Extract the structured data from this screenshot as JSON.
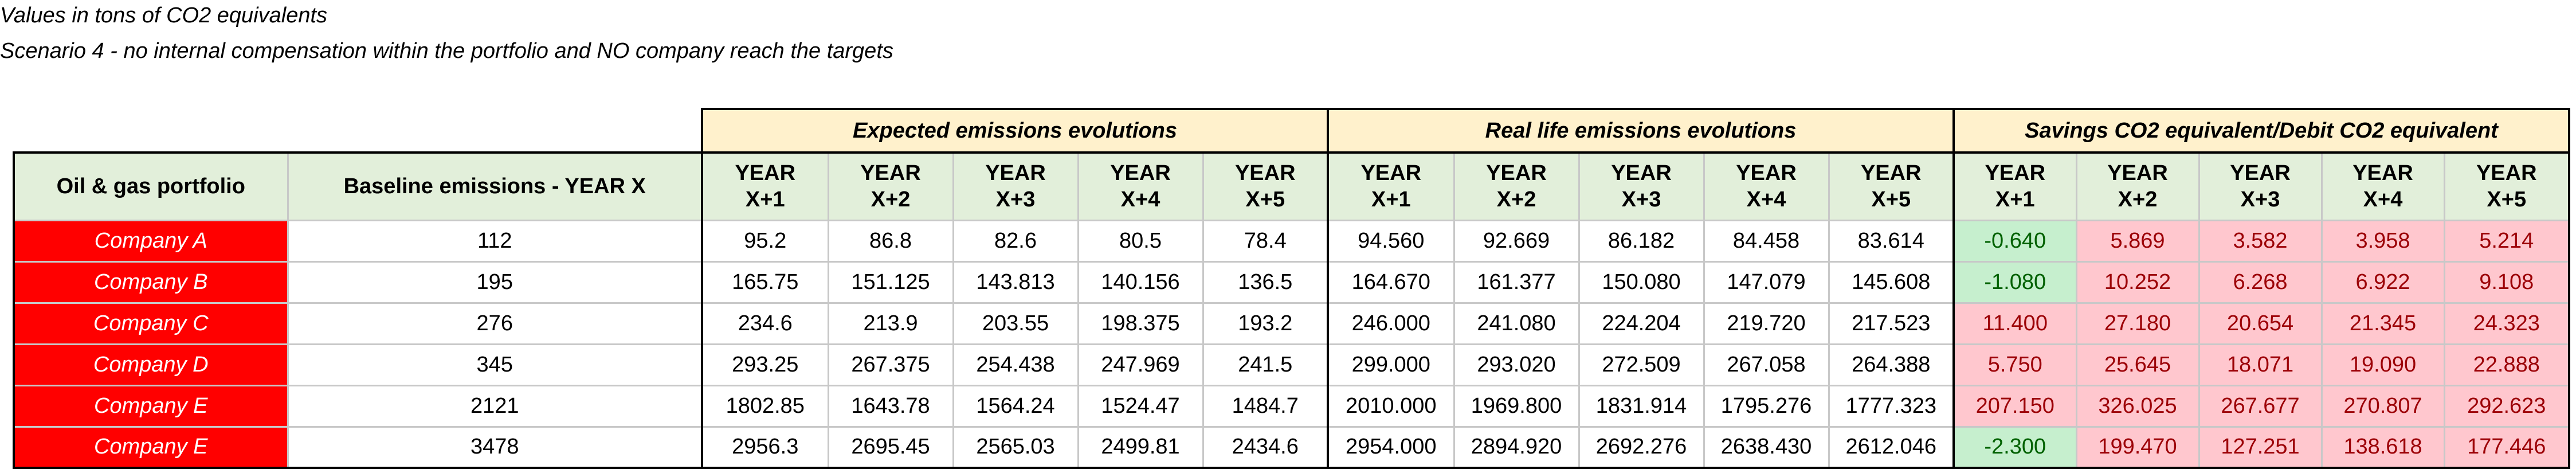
{
  "notes": {
    "line1": "Values in tons of CO2 equivalents",
    "line2": "Scenario 4  - no internal compensation within the portfolio and NO company reach the targets"
  },
  "groups": {
    "expected": "Expected emissions evolutions",
    "real": "Real life emissions evolutions",
    "savings": "Savings CO2 equivalent/Debit CO2 equivalent"
  },
  "headers": {
    "portfolio": "Oil & gas portfolio",
    "baseline": "Baseline emissions - YEAR X",
    "year_top": "YEAR",
    "years": [
      "X+1",
      "X+2",
      "X+3",
      "X+4",
      "X+5"
    ]
  },
  "colors": {
    "company_fill": "#ff0000",
    "header_fill": "#e2efda",
    "group_fill": "#fff1cc",
    "debit_fill": "#ffc7ce",
    "saving_fill": "#c6efce"
  },
  "rows": [
    {
      "company": "Company A",
      "baseline": "112",
      "expected": [
        "95.2",
        "86.8",
        "82.6",
        "80.5",
        "78.4"
      ],
      "real": [
        "94.560",
        "92.669",
        "86.182",
        "84.458",
        "83.614"
      ],
      "savings": [
        "-0.640",
        "5.869",
        "3.582",
        "3.958",
        "5.214"
      ]
    },
    {
      "company": "Company B",
      "baseline": "195",
      "expected": [
        "165.75",
        "151.125",
        "143.813",
        "140.156",
        "136.5"
      ],
      "real": [
        "164.670",
        "161.377",
        "150.080",
        "147.079",
        "145.608"
      ],
      "savings": [
        "-1.080",
        "10.252",
        "6.268",
        "6.922",
        "9.108"
      ]
    },
    {
      "company": "Company C",
      "baseline": "276",
      "expected": [
        "234.6",
        "213.9",
        "203.55",
        "198.375",
        "193.2"
      ],
      "real": [
        "246.000",
        "241.080",
        "224.204",
        "219.720",
        "217.523"
      ],
      "savings": [
        "11.400",
        "27.180",
        "20.654",
        "21.345",
        "24.323"
      ]
    },
    {
      "company": "Company D",
      "baseline": "345",
      "expected": [
        "293.25",
        "267.375",
        "254.438",
        "247.969",
        "241.5"
      ],
      "real": [
        "299.000",
        "293.020",
        "272.509",
        "267.058",
        "264.388"
      ],
      "savings": [
        "5.750",
        "25.645",
        "18.071",
        "19.090",
        "22.888"
      ]
    },
    {
      "company": "Company E",
      "baseline": "2121",
      "expected": [
        "1802.85",
        "1643.78",
        "1564.24",
        "1524.47",
        "1484.7"
      ],
      "real": [
        "2010.000",
        "1969.800",
        "1831.914",
        "1795.276",
        "1777.323"
      ],
      "savings": [
        "207.150",
        "326.025",
        "267.677",
        "270.807",
        "292.623"
      ]
    },
    {
      "company": "Company E",
      "baseline": "3478",
      "expected": [
        "2956.3",
        "2695.45",
        "2565.03",
        "2499.81",
        "2434.6"
      ],
      "real": [
        "2954.000",
        "2894.920",
        "2692.276",
        "2638.430",
        "2612.046"
      ],
      "savings": [
        "-2.300",
        "199.470",
        "127.251",
        "138.618",
        "177.446"
      ]
    }
  ]
}
